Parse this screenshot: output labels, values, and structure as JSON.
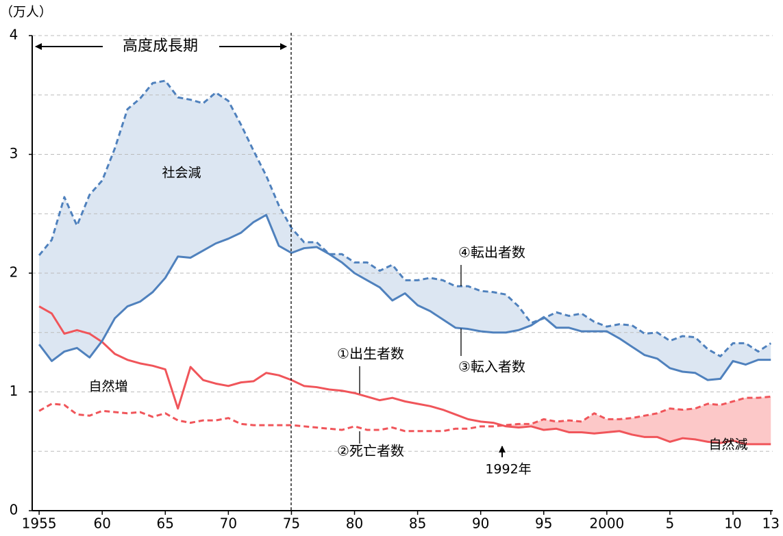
{
  "chart_data": {
    "type": "line",
    "y_label": "（万人）",
    "period_label": "高度成長期",
    "annotations": [
      "社会減",
      "自然増",
      "自然減",
      "1992年"
    ],
    "x": [
      1955,
      1956,
      1957,
      1958,
      1959,
      1960,
      1961,
      1962,
      1963,
      1964,
      1965,
      1966,
      1967,
      1968,
      1969,
      1970,
      1971,
      1972,
      1973,
      1974,
      1975,
      1976,
      1977,
      1978,
      1979,
      1980,
      1981,
      1982,
      1983,
      1984,
      1985,
      1986,
      1987,
      1988,
      1989,
      1990,
      1991,
      1992,
      1993,
      1994,
      1995,
      1996,
      1997,
      1998,
      1999,
      2000,
      2001,
      2002,
      2003,
      2004,
      2005,
      2006,
      2007,
      2008,
      2009,
      2010,
      2011,
      2012,
      2013
    ],
    "xlim": [
      1954.45,
      2013.15
    ],
    "xticks": [
      1955,
      {
        "value": 1960,
        "label": "60"
      },
      {
        "value": 1965,
        "label": "65"
      },
      {
        "value": 1970,
        "label": "70"
      },
      {
        "value": 1975,
        "label": "75"
      },
      {
        "value": 1980,
        "label": "80"
      },
      {
        "value": 1985,
        "label": "85"
      },
      {
        "value": 1990,
        "label": "90"
      },
      {
        "value": 1995,
        "label": "95"
      },
      2000,
      {
        "value": 2005,
        "label": "5"
      },
      {
        "value": 2010,
        "label": "10"
      },
      {
        "value": 2013,
        "label": "13"
      }
    ],
    "ylim": [
      0,
      4
    ],
    "yticks": [
      0,
      1,
      2,
      3,
      4
    ],
    "grid_lines": [
      0.5,
      1,
      1.5,
      2,
      2.5,
      3,
      3.5,
      4
    ],
    "series": [
      {
        "name": "①出生者数",
        "color": "#f0555a",
        "style": "solid",
        "values": [
          1.72,
          1.66,
          1.49,
          1.52,
          1.49,
          1.42,
          1.32,
          1.27,
          1.24,
          1.22,
          1.19,
          0.86,
          1.21,
          1.1,
          1.07,
          1.05,
          1.08,
          1.09,
          1.16,
          1.14,
          1.1,
          1.05,
          1.04,
          1.02,
          1.01,
          0.99,
          0.96,
          0.93,
          0.95,
          0.92,
          0.9,
          0.88,
          0.85,
          0.81,
          0.77,
          0.75,
          0.74,
          0.71,
          0.7,
          0.71,
          0.68,
          0.69,
          0.66,
          0.66,
          0.65,
          0.66,
          0.67,
          0.64,
          0.62,
          0.62,
          0.58,
          0.61,
          0.6,
          0.58,
          0.57,
          0.59,
          0.56,
          0.56,
          0.56
        ]
      },
      {
        "name": "②死亡者数",
        "color": "#f0555a",
        "style": "dashed",
        "values": [
          0.84,
          0.9,
          0.89,
          0.81,
          0.8,
          0.84,
          0.83,
          0.82,
          0.83,
          0.79,
          0.82,
          0.76,
          0.74,
          0.76,
          0.76,
          0.78,
          0.73,
          0.72,
          0.72,
          0.72,
          0.72,
          0.71,
          0.7,
          0.69,
          0.68,
          0.71,
          0.68,
          0.68,
          0.7,
          0.67,
          0.67,
          0.67,
          0.67,
          0.69,
          0.69,
          0.71,
          0.71,
          0.72,
          0.73,
          0.73,
          0.77,
          0.75,
          0.76,
          0.75,
          0.82,
          0.77,
          0.77,
          0.78,
          0.8,
          0.82,
          0.86,
          0.85,
          0.86,
          0.9,
          0.89,
          0.92,
          0.95,
          0.95,
          0.96
        ]
      },
      {
        "name": "③転入者数",
        "color": "#4f81bd",
        "style": "solid",
        "values": [
          1.4,
          1.26,
          1.34,
          1.37,
          1.29,
          1.43,
          1.62,
          1.72,
          1.76,
          1.84,
          1.96,
          2.14,
          2.13,
          2.19,
          2.25,
          2.29,
          2.34,
          2.43,
          2.49,
          2.23,
          2.17,
          2.21,
          2.22,
          2.16,
          2.09,
          2.0,
          1.94,
          1.88,
          1.77,
          1.83,
          1.73,
          1.68,
          1.61,
          1.54,
          1.53,
          1.51,
          1.5,
          1.5,
          1.52,
          1.56,
          1.63,
          1.54,
          1.54,
          1.51,
          1.51,
          1.51,
          1.45,
          1.38,
          1.31,
          1.28,
          1.2,
          1.17,
          1.16,
          1.1,
          1.11,
          1.26,
          1.23,
          1.27,
          1.27
        ]
      },
      {
        "name": "④転出者数",
        "color": "#4f81bd",
        "style": "dashed",
        "values": [
          2.15,
          2.28,
          2.64,
          2.4,
          2.66,
          2.78,
          3.05,
          3.38,
          3.47,
          3.6,
          3.62,
          3.48,
          3.46,
          3.43,
          3.52,
          3.45,
          3.25,
          3.03,
          2.82,
          2.57,
          2.38,
          2.26,
          2.26,
          2.16,
          2.16,
          2.09,
          2.09,
          2.02,
          2.07,
          1.94,
          1.94,
          1.96,
          1.94,
          1.89,
          1.89,
          1.85,
          1.84,
          1.82,
          1.72,
          1.58,
          1.62,
          1.67,
          1.64,
          1.66,
          1.59,
          1.55,
          1.57,
          1.56,
          1.49,
          1.5,
          1.43,
          1.47,
          1.46,
          1.36,
          1.3,
          1.41,
          1.41,
          1.34,
          1.41
        ]
      }
    ],
    "fill_colors": [
      "#dce6f2",
      "#fcc8c8"
    ]
  }
}
